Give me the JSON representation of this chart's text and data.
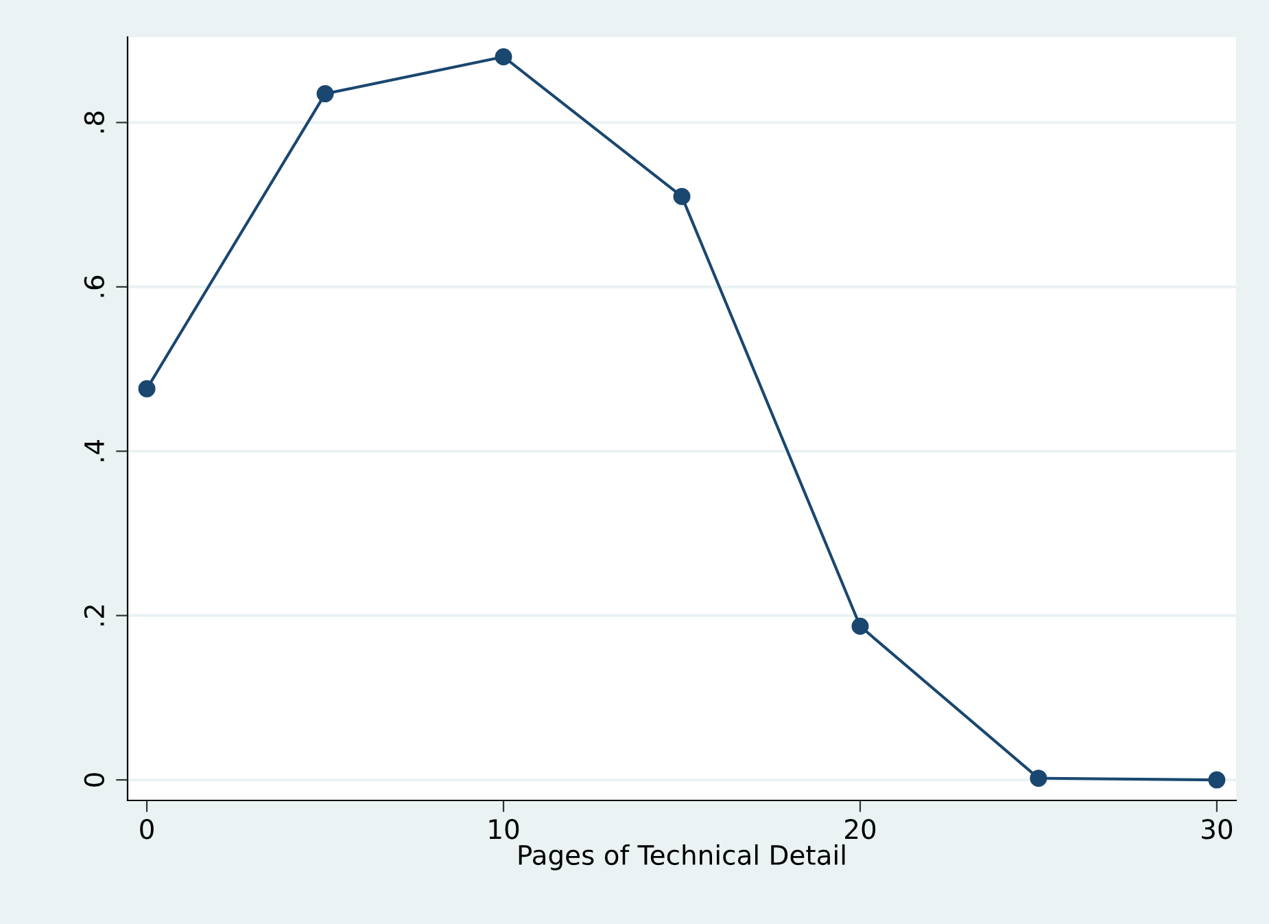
{
  "chart_data": {
    "type": "line",
    "xlabel": "Pages of Technical Detail",
    "x": [
      0,
      5,
      10,
      15,
      20,
      25,
      30
    ],
    "series": [
      {
        "color": "#1a476f",
        "values": [
          0.476,
          0.835,
          0.88,
          0.71,
          0.187,
          0.002,
          0.0
        ]
      }
    ],
    "xlim": [
      -0.54,
      30.54
    ],
    "ylim": [
      -0.025,
      0.904
    ],
    "xticks": [
      0,
      10,
      20,
      30
    ],
    "yticks": [
      0,
      {
        "value": 0.2,
        "label": ".2"
      },
      {
        "value": 0.4,
        "label": ".4"
      },
      {
        "value": 0.6,
        "label": ".6"
      },
      {
        "value": 0.8,
        "label": ".8"
      }
    ],
    "grid": "y",
    "marker": "circle",
    "line_style": "solid",
    "legend": false
  }
}
